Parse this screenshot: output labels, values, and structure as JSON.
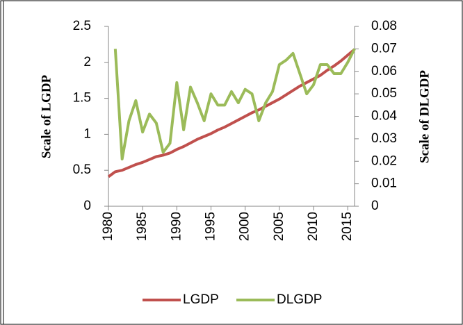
{
  "chart_data": {
    "type": "line",
    "x": [
      1980,
      1981,
      1982,
      1983,
      1984,
      1985,
      1986,
      1987,
      1988,
      1989,
      1990,
      1991,
      1992,
      1993,
      1994,
      1995,
      1996,
      1997,
      1998,
      1999,
      2000,
      2001,
      2002,
      2003,
      2004,
      2005,
      2006,
      2007,
      2008,
      2009,
      2010,
      2011,
      2012,
      2013,
      2014,
      2015,
      2016
    ],
    "series": [
      {
        "name": "LGDP",
        "color": "#c0504d",
        "axis": "y",
        "values": [
          0.41,
          0.48,
          0.5,
          0.54,
          0.58,
          0.61,
          0.65,
          0.69,
          0.71,
          0.74,
          0.79,
          0.83,
          0.88,
          0.93,
          0.97,
          1.01,
          1.06,
          1.1,
          1.15,
          1.2,
          1.25,
          1.3,
          1.34,
          1.39,
          1.44,
          1.49,
          1.55,
          1.61,
          1.67,
          1.72,
          1.77,
          1.82,
          1.89,
          1.95,
          2.02,
          2.1,
          2.18
        ]
      },
      {
        "name": "DLGDP",
        "color": "#9bbb59",
        "axis": "y2",
        "values": [
          null,
          0.07,
          0.021,
          0.038,
          0.047,
          0.033,
          0.041,
          0.037,
          0.024,
          0.028,
          0.055,
          0.034,
          0.053,
          0.046,
          0.038,
          0.05,
          0.045,
          0.045,
          0.051,
          0.046,
          0.052,
          0.05,
          0.038,
          0.046,
          0.051,
          0.063,
          0.065,
          0.068,
          0.059,
          0.05,
          0.054,
          0.063,
          0.063,
          0.059,
          0.059,
          0.064,
          0.07
        ]
      }
    ],
    "xlim": [
      1980,
      2016
    ],
    "xticks": [
      1980,
      1985,
      1990,
      1995,
      2000,
      2005,
      2010,
      2015
    ],
    "ylim": [
      0,
      2.5
    ],
    "yticks": [
      0,
      0.5,
      1,
      1.5,
      2,
      2.5
    ],
    "y2lim": [
      0,
      0.08
    ],
    "y2ticks": [
      0,
      0.01,
      0.02,
      0.03,
      0.04,
      0.05,
      0.06,
      0.07,
      0.08
    ],
    "ylabel": "Scale of LGDP",
    "y2label": "Scale of DLGDP",
    "legend": "bottom"
  }
}
